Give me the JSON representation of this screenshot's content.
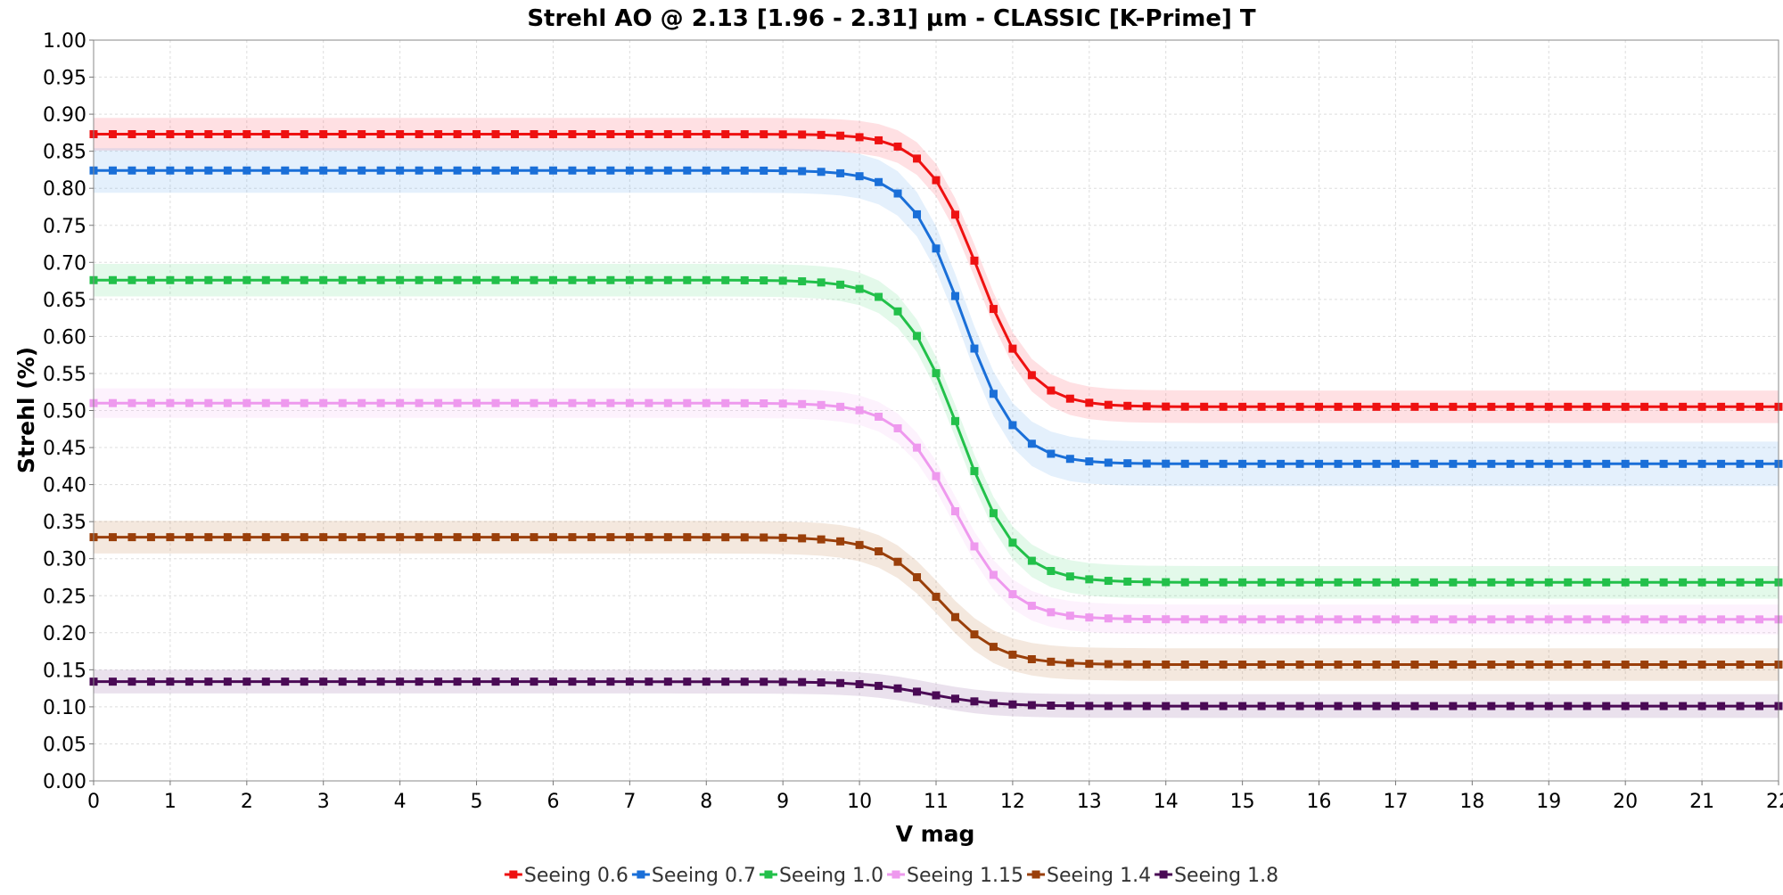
{
  "chart_data": {
    "type": "line",
    "title": "Strehl AO @ 2.13 [1.96 - 2.31] µm - CLASSIC [K-Prime] T",
    "xlabel": "V mag",
    "ylabel": "Strehl (%)",
    "xlim": [
      0,
      22
    ],
    "ylim": [
      0,
      1.0
    ],
    "x_ticks": [
      "0",
      "1",
      "2",
      "3",
      "4",
      "5",
      "6",
      "7",
      "8",
      "9",
      "10",
      "11",
      "12",
      "13",
      "14",
      "15",
      "16",
      "17",
      "18",
      "19",
      "20",
      "21",
      "22"
    ],
    "y_ticks": [
      "0.00",
      "0.05",
      "0.10",
      "0.15",
      "0.20",
      "0.25",
      "0.30",
      "0.35",
      "0.40",
      "0.45",
      "0.50",
      "0.55",
      "0.60",
      "0.65",
      "0.70",
      "0.75",
      "0.80",
      "0.85",
      "0.90",
      "0.95",
      "1.00"
    ],
    "grid": true,
    "legend_position": "bottom",
    "x": [
      0,
      0.25,
      0.5,
      0.75,
      1,
      1.25,
      1.5,
      1.75,
      2,
      2.25,
      2.5,
      2.75,
      3,
      3.25,
      3.5,
      3.75,
      4,
      4.25,
      4.5,
      4.75,
      5,
      5.25,
      5.5,
      5.75,
      6,
      6.25,
      6.5,
      6.75,
      7,
      7.25,
      7.5,
      7.75,
      8,
      8.25,
      8.5,
      8.75,
      9,
      9.25,
      9.5,
      9.75,
      10,
      10.25,
      10.5,
      10.75,
      11,
      11.25,
      11.5,
      11.75,
      12,
      12.25,
      12.5,
      12.75,
      13,
      13.25,
      13.5,
      13.75,
      14,
      14.25,
      14.5,
      14.75,
      15,
      15.25,
      15.5,
      15.75,
      16,
      16.25,
      16.5,
      16.75,
      17,
      17.25,
      17.5,
      17.75,
      18,
      18.25,
      18.5,
      18.75,
      19,
      19.25,
      19.5,
      19.75,
      20,
      20.25,
      20.5,
      20.75,
      21,
      21.25,
      21.5,
      21.75,
      22
    ],
    "series": [
      {
        "name": "Seeing 0.6",
        "color": "#ee1111",
        "band_color": "#ff5566",
        "y_max": 0.873,
        "y_min": 0.505,
        "x_center": 11.55,
        "steepness": 2.9,
        "band": 0.022
      },
      {
        "name": "Seeing 0.7",
        "color": "#1a6fd8",
        "band_color": "#6aaaf0",
        "y_max": 0.824,
        "y_min": 0.428,
        "x_center": 11.35,
        "steepness": 2.9,
        "band": 0.03
      },
      {
        "name": "Seeing 1.0",
        "color": "#22c04a",
        "band_color": "#66dd88",
        "y_max": 0.676,
        "y_min": 0.268,
        "x_center": 11.3,
        "steepness": 2.7,
        "band": 0.022
      },
      {
        "name": "Seeing 1.15",
        "color": "#ee99ee",
        "band_color": "#f3b8f3",
        "y_max": 0.51,
        "y_min": 0.218,
        "x_center": 11.25,
        "steepness": 2.7,
        "band": 0.02
      },
      {
        "name": "Seeing 1.4",
        "color": "#9a3f0a",
        "band_color": "#c0804a",
        "y_max": 0.329,
        "y_min": 0.157,
        "x_center": 11.05,
        "steepness": 2.6,
        "band": 0.022
      },
      {
        "name": "Seeing 1.8",
        "color": "#4a0a55",
        "band_color": "#8a5a99",
        "y_max": 0.134,
        "y_min": 0.101,
        "x_center": 10.9,
        "steepness": 2.4,
        "band": 0.016
      }
    ]
  }
}
